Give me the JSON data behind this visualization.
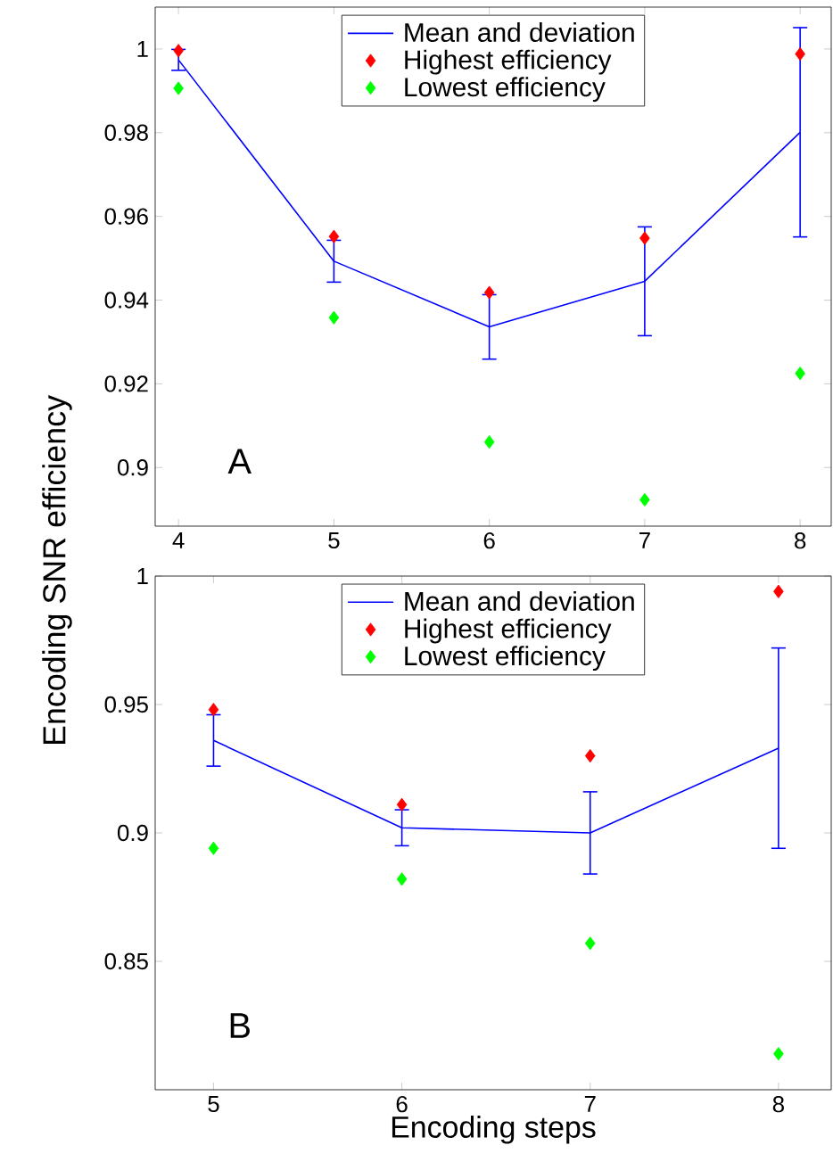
{
  "chart_data": [
    {
      "type": "line",
      "ylabel": "Encoding SNR efficiency",
      "annotations": [
        "A"
      ],
      "x": [
        4,
        5,
        6,
        7,
        8
      ],
      "xlim": [
        3.85,
        8.2
      ],
      "ylim": [
        0.886,
        1.01
      ],
      "xticks": [
        4,
        5,
        6,
        7,
        8
      ],
      "yticks": [
        {
          "value": 0.9,
          "label": "0.9"
        },
        0.92,
        0.94,
        0.96,
        0.98,
        1
      ],
      "legend": "top",
      "series": [
        {
          "name": "Mean and deviation",
          "type": "line",
          "color": "#0000ff",
          "marker": "none",
          "line_style": "solid",
          "values": [
            0.9974,
            0.9493,
            0.9336,
            0.9445,
            0.9801
          ],
          "errors": [
            0.0025,
            0.005,
            0.0077,
            0.013,
            0.025
          ]
        },
        {
          "name": "Highest efficiency",
          "type": "scatter",
          "color": "#ff0000",
          "marker": "diamond",
          "values": [
            0.9996,
            0.9552,
            0.9418,
            0.9548,
            0.9988
          ]
        },
        {
          "name": "Lowest efficiency",
          "type": "scatter",
          "color": "#00ff00",
          "marker": "diamond",
          "values": [
            0.9906,
            0.9358,
            0.9061,
            0.8923,
            0.9225
          ]
        }
      ]
    },
    {
      "type": "line",
      "xlabel": "Encoding steps",
      "annotations": [
        "B"
      ],
      "x": [
        5,
        6,
        7,
        8
      ],
      "xlim": [
        4.69,
        8.28
      ],
      "ylim": [
        0.8,
        1.0
      ],
      "xticks": [
        5,
        6,
        7,
        8
      ],
      "yticks": [
        0.85,
        {
          "value": 0.9,
          "label": "0.9"
        },
        0.95,
        1
      ],
      "legend": "top",
      "series": [
        {
          "name": "Mean and deviation",
          "type": "line",
          "color": "#0000ff",
          "marker": "none",
          "line_style": "solid",
          "values": [
            0.936,
            0.902,
            0.9,
            0.933
          ],
          "errors": [
            0.01,
            0.007,
            0.016,
            0.039
          ]
        },
        {
          "name": "Highest efficiency",
          "type": "scatter",
          "color": "#ff0000",
          "marker": "diamond",
          "values": [
            0.948,
            0.911,
            0.93,
            0.994
          ]
        },
        {
          "name": "Lowest efficiency",
          "type": "scatter",
          "color": "#00ff00",
          "marker": "diamond",
          "values": [
            0.894,
            0.882,
            0.857,
            0.814
          ]
        }
      ]
    }
  ]
}
